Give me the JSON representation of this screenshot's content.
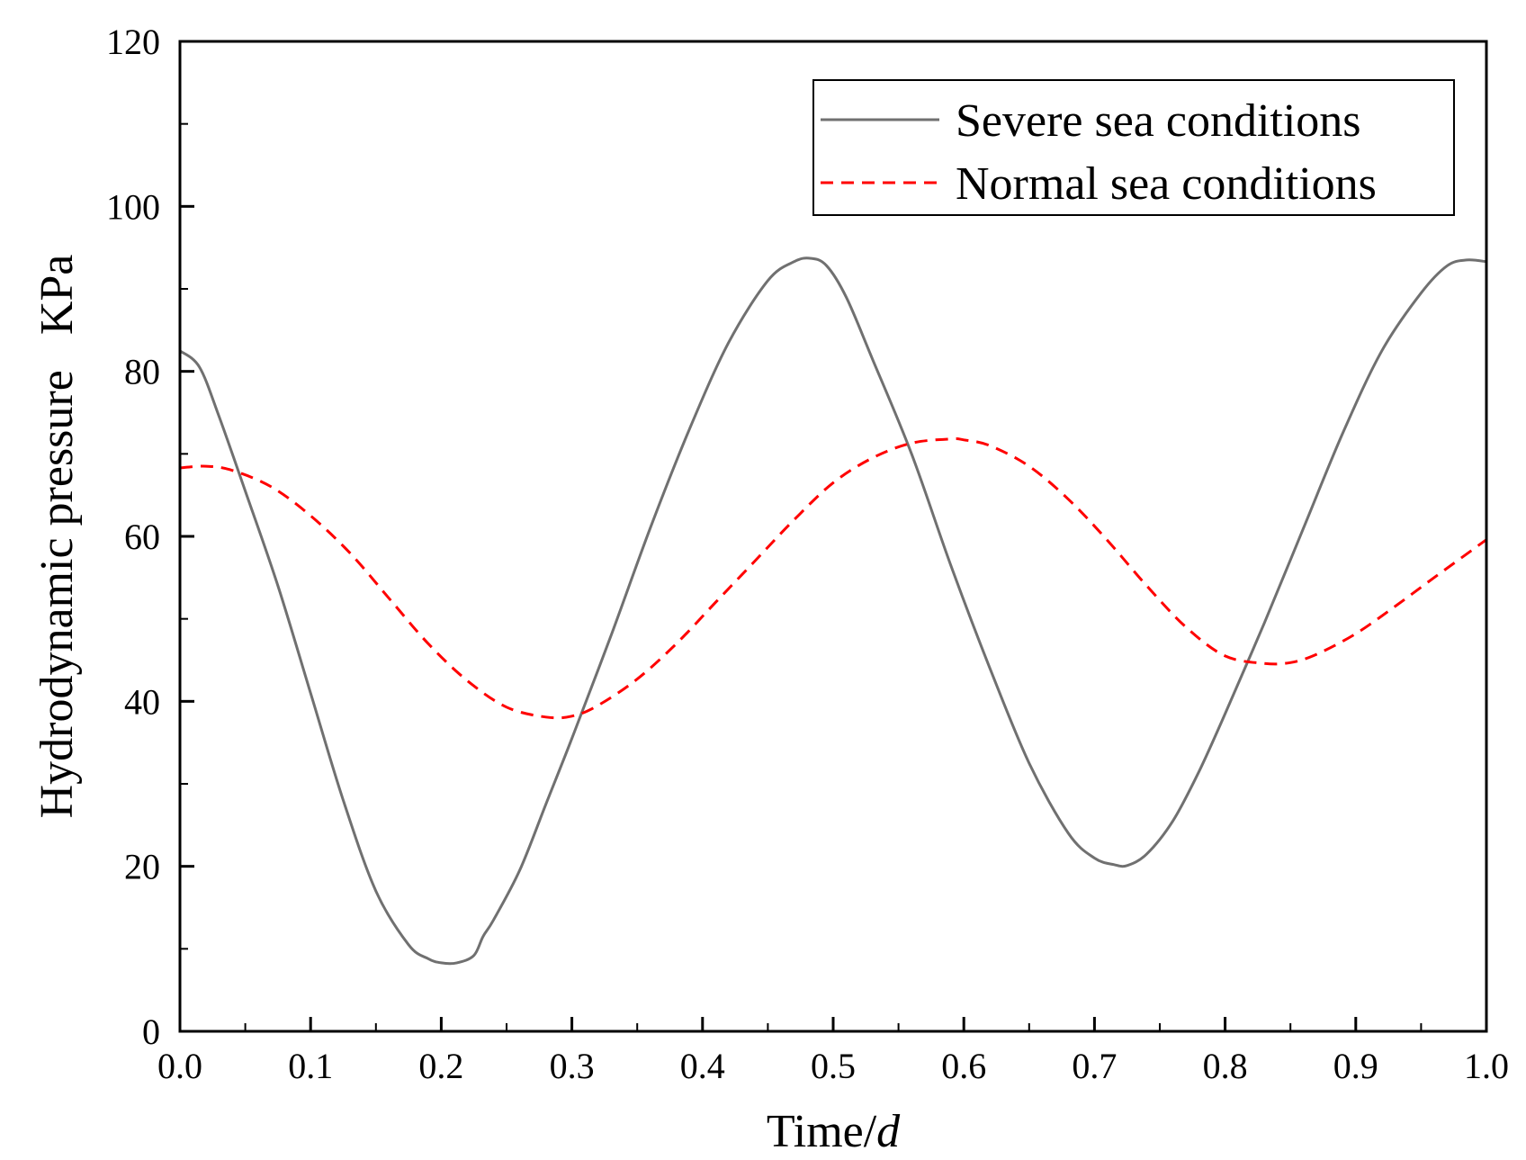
{
  "chart_data": {
    "type": "line",
    "title": "",
    "xlabel": "Time/",
    "xlabel_italic": "d",
    "ylabel": "Hydrodynamic pressure   KPa",
    "xlim": [
      0.0,
      1.0
    ],
    "ylim": [
      0,
      120
    ],
    "x_ticks": [
      "0.0",
      "0.1",
      "0.2",
      "0.3",
      "0.4",
      "0.5",
      "0.6",
      "0.7",
      "0.8",
      "0.9",
      "1.0"
    ],
    "y_ticks": [
      "0",
      "20",
      "40",
      "60",
      "80",
      "100",
      "120"
    ],
    "legend_position": "top-right",
    "series": [
      {
        "name": "Severe sea conditions",
        "color": "#707070",
        "style": "solid",
        "x": [
          0.0,
          0.015,
          0.03,
          0.05,
          0.075,
          0.1,
          0.125,
          0.15,
          0.175,
          0.19,
          0.2,
          0.212,
          0.225,
          0.232,
          0.24,
          0.26,
          0.28,
          0.3,
          0.33,
          0.36,
          0.39,
          0.42,
          0.45,
          0.47,
          0.483,
          0.495,
          0.51,
          0.53,
          0.56,
          0.59,
          0.62,
          0.65,
          0.68,
          0.7,
          0.715,
          0.725,
          0.74,
          0.76,
          0.78,
          0.8,
          0.83,
          0.86,
          0.89,
          0.92,
          0.95,
          0.97,
          0.985,
          1.0
        ],
        "values": [
          82.5,
          80.5,
          74.5,
          65.5,
          54,
          41,
          28,
          17,
          10.5,
          8.8,
          8.3,
          8.3,
          9.2,
          11.5,
          13.5,
          19.5,
          27.5,
          35.5,
          48,
          61,
          73,
          83.5,
          91,
          93.3,
          93.7,
          92.8,
          89,
          81.5,
          70,
          56.5,
          44,
          32.5,
          24,
          21,
          20.2,
          20.1,
          21.5,
          25.5,
          31.5,
          38.5,
          49.5,
          61,
          72.5,
          82.5,
          89.5,
          92.8,
          93.5,
          93.3
        ]
      },
      {
        "name": "Normal sea conditions",
        "color": "#ff0000",
        "style": "dashed",
        "x": [
          0.0,
          0.02,
          0.04,
          0.07,
          0.1,
          0.13,
          0.16,
          0.19,
          0.22,
          0.25,
          0.28,
          0.3,
          0.32,
          0.35,
          0.38,
          0.41,
          0.44,
          0.47,
          0.5,
          0.53,
          0.56,
          0.59,
          0.6,
          0.62,
          0.65,
          0.68,
          0.71,
          0.74,
          0.77,
          0.8,
          0.83,
          0.85,
          0.87,
          0.9,
          0.93,
          0.96,
          1.0
        ],
        "values": [
          68.3,
          68.5,
          68,
          66,
          62.5,
          58,
          52.5,
          47,
          42.5,
          39.3,
          38.1,
          38.2,
          39.5,
          42.7,
          47,
          52,
          57,
          62,
          66.5,
          69.5,
          71.3,
          71.8,
          71.7,
          71,
          68.5,
          64.5,
          59.5,
          54,
          49,
          45.5,
          44.6,
          44.7,
          45.7,
          48.2,
          51.5,
          55,
          59.6
        ]
      }
    ]
  }
}
